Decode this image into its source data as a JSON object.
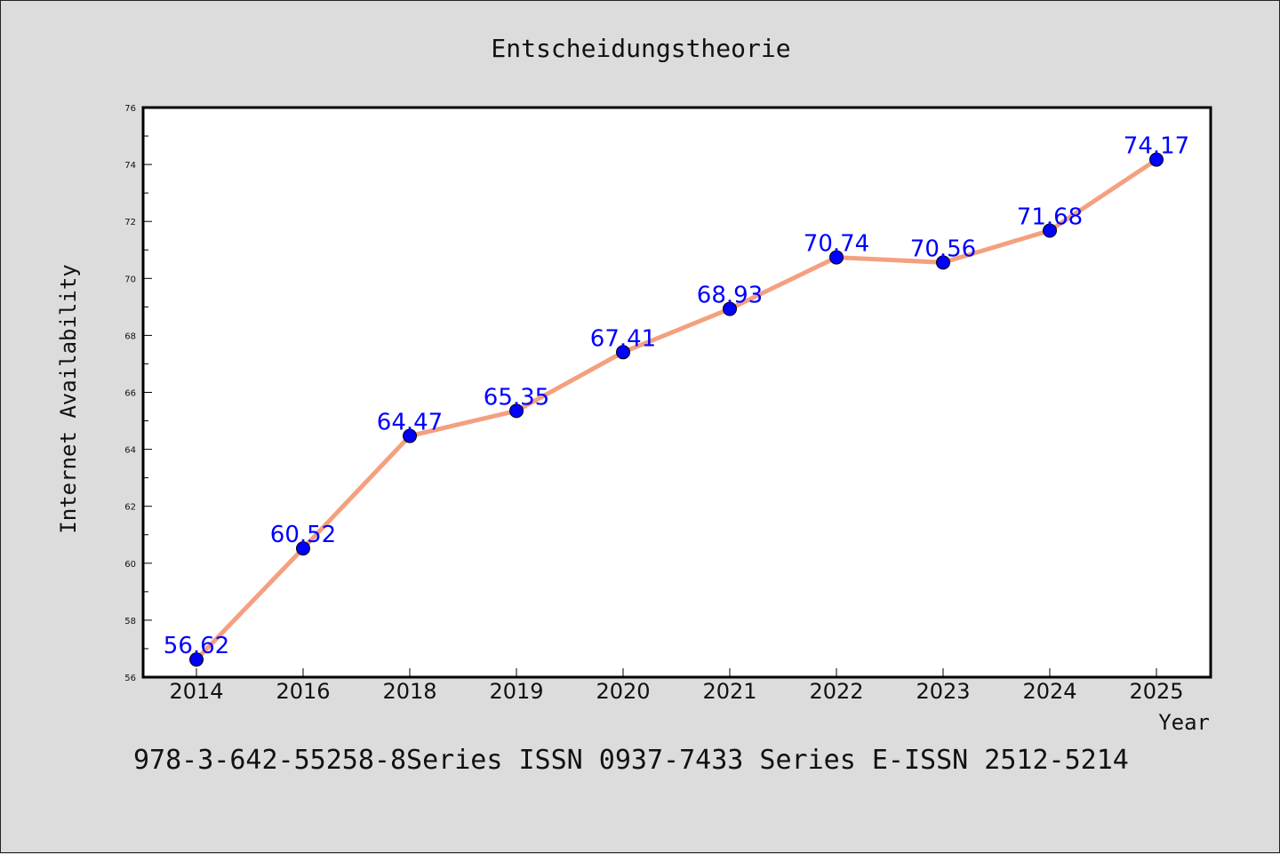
{
  "chart_data": {
    "type": "line",
    "title": "Entscheidungstheorie",
    "xlabel": "Year",
    "ylabel": "Internet Availability",
    "categories": [
      "2014",
      "2016",
      "2018",
      "2019",
      "2020",
      "2021",
      "2022",
      "2023",
      "2024",
      "2025"
    ],
    "series": [
      {
        "values": [
          56.62,
          60.52,
          64.47,
          65.35,
          67.41,
          68.93,
          70.74,
          70.56,
          71.68,
          74.17
        ],
        "line_color": "#f4a07f",
        "marker_color": "#0000ff"
      }
    ],
    "ylim": [
      56,
      76
    ],
    "yticks": [
      56,
      58,
      60,
      62,
      64,
      66,
      68,
      70,
      72,
      74,
      76
    ],
    "data_labels": [
      "56.62",
      "60.52",
      "64.47",
      "65.35",
      "67.41",
      "68.93",
      "70.74",
      "70.56",
      "71.68",
      "74.17"
    ],
    "grid": false,
    "background": "#dcdcdc",
    "plot_background": "#ffffff"
  },
  "footer": "978-3-642-55258-8Series ISSN 0937-7433 Series E-ISSN 2512-5214"
}
